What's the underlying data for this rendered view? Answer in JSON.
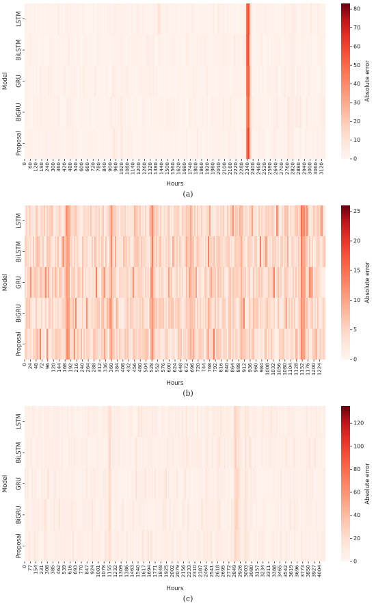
{
  "chart_data": [
    {
      "type": "heatmap",
      "caption": "(a)",
      "xlabel": "Hours",
      "ylabel": "Model",
      "colorbar_label": "Absolute error",
      "rows": [
        "LSTM",
        "BiLSTM",
        "GRU",
        "BiGRU",
        "Proposal"
      ],
      "x_range": [
        0,
        3160
      ],
      "x_ticks": [
        0,
        60,
        120,
        180,
        240,
        300,
        360,
        420,
        480,
        540,
        600,
        660,
        720,
        780,
        840,
        900,
        960,
        1020,
        1080,
        1140,
        1200,
        1260,
        1320,
        1380,
        1440,
        1500,
        1560,
        1620,
        1680,
        1740,
        1800,
        1860,
        1920,
        1980,
        2040,
        2100,
        2160,
        2220,
        2280,
        2340,
        2400,
        2460,
        2520,
        2580,
        2640,
        2700,
        2760,
        2820,
        2880,
        2940,
        3000,
        3060,
        3120
      ],
      "color_range": [
        0,
        83
      ],
      "colorbar_ticks": [
        0,
        10,
        20,
        30,
        40,
        50,
        60,
        70,
        80
      ],
      "base_error": 2,
      "hotspots": [
        {
          "x": 2345,
          "value": 60,
          "rows": "all"
        },
        {
          "x": 2355,
          "value": 45,
          "rows": "all"
        },
        {
          "x": 2365,
          "value": 20,
          "rows": "all"
        },
        {
          "x": 1410,
          "value": 12,
          "rows": [
            0
          ]
        },
        {
          "x": 1420,
          "value": 9,
          "rows": [
            0
          ]
        },
        {
          "x": 1020,
          "value": 8,
          "rows": [
            3,
            4
          ]
        },
        {
          "x": 940,
          "value": 7,
          "rows": [
            4
          ]
        },
        {
          "x": 2770,
          "value": 8,
          "rows": [
            3,
            4
          ]
        },
        {
          "x": 2810,
          "value": 6,
          "rows": "all"
        }
      ]
    },
    {
      "type": "heatmap",
      "caption": "(b)",
      "xlabel": "Hours",
      "ylabel": "Model",
      "colorbar_label": "Absolute error",
      "rows": [
        "LSTM",
        "BiLSTM",
        "GRU",
        "BiGRU",
        "Proposal"
      ],
      "x_range": [
        0,
        1248
      ],
      "x_ticks": [
        0,
        24,
        48,
        72,
        96,
        120,
        144,
        168,
        192,
        216,
        240,
        264,
        288,
        312,
        336,
        360,
        384,
        408,
        432,
        456,
        480,
        504,
        528,
        552,
        576,
        600,
        624,
        648,
        672,
        696,
        720,
        744,
        768,
        792,
        816,
        840,
        864,
        888,
        912,
        936,
        960,
        984,
        1008,
        1032,
        1056,
        1080,
        1104,
        1128,
        1152,
        1176,
        1200,
        1224
      ],
      "color_range": [
        0,
        26
      ],
      "colorbar_ticks": [
        0,
        5,
        10,
        15,
        20,
        25
      ],
      "base_error": 4,
      "hotspots": [
        {
          "x": 176,
          "value": 14,
          "rows": "all"
        },
        {
          "x": 182,
          "value": 12,
          "rows": "all"
        },
        {
          "x": 360,
          "value": 11,
          "rows": "all"
        },
        {
          "x": 530,
          "value": 13,
          "rows": "all"
        },
        {
          "x": 690,
          "value": 10,
          "rows": "all"
        },
        {
          "x": 1150,
          "value": 15,
          "rows": "all"
        },
        {
          "x": 1160,
          "value": 12,
          "rows": "all"
        },
        {
          "x": 900,
          "value": 9,
          "rows": "all"
        }
      ]
    },
    {
      "type": "heatmap",
      "caption": "(c)",
      "xlabel": "Hours",
      "ylabel": "Model",
      "colorbar_label": "Absolute error",
      "rows": [
        "LSTM",
        "BiLSTM",
        "GRU",
        "BiGRU",
        "Proposal"
      ],
      "x_range": [
        0,
        4081
      ],
      "x_ticks": [
        0,
        77,
        154,
        231,
        308,
        385,
        462,
        539,
        616,
        693,
        770,
        847,
        924,
        1001,
        1078,
        1155,
        1232,
        1309,
        1386,
        1463,
        1540,
        1617,
        1694,
        1771,
        1848,
        1925,
        2002,
        2079,
        2156,
        2233,
        2310,
        2387,
        2464,
        2541,
        2618,
        2695,
        2772,
        2849,
        2926,
        3003,
        3080,
        3157,
        3234,
        3311,
        3388,
        3465,
        3542,
        3619,
        3696,
        3773,
        3850,
        3927,
        4004
      ],
      "color_range": [
        0,
        135
      ],
      "colorbar_ticks": [
        0,
        20,
        40,
        60,
        80,
        100,
        120
      ],
      "base_error": 5,
      "hotspots": [
        {
          "x": 1155,
          "value": 25,
          "rows": "all"
        },
        {
          "x": 2860,
          "value": 30,
          "rows": "all"
        },
        {
          "x": 2900,
          "value": 22,
          "rows": "all"
        },
        {
          "x": 2890,
          "value": 28,
          "rows": [
            2,
            3
          ]
        },
        {
          "x": 3000,
          "value": 18,
          "rows": "all"
        },
        {
          "x": 2480,
          "value": 12,
          "rows": "all"
        },
        {
          "x": 2620,
          "value": 12,
          "rows": "all"
        }
      ]
    }
  ]
}
